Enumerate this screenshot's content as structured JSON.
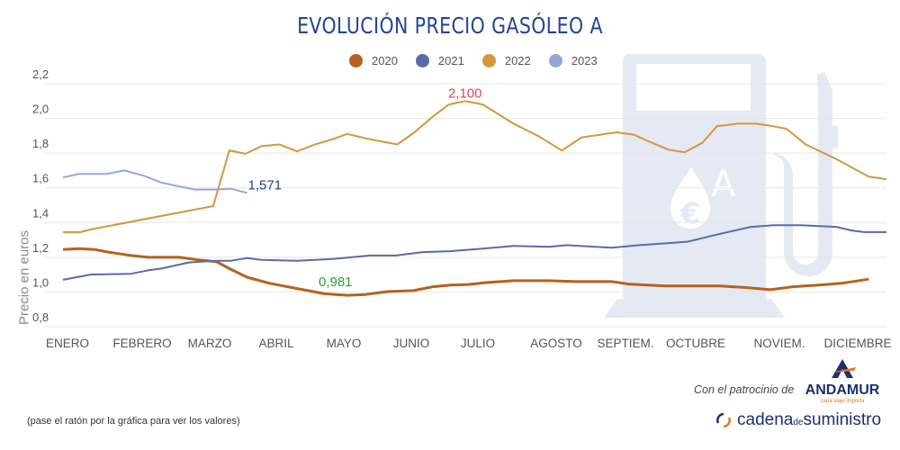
{
  "chart_data": {
    "type": "line",
    "title": "EVOLUCIÓN PRECIO GASÓLEO A",
    "ylabel": "Precio en euros",
    "xlabel": "",
    "x_unit": "week",
    "xlim": [
      1,
      52
    ],
    "ylim": [
      0.8,
      2.2
    ],
    "y_ticks": [
      "2,2",
      "2,0",
      "1,8",
      "1,6",
      "1,4",
      "1,2",
      "1,0",
      "0,8"
    ],
    "y_tick_values": [
      2.2,
      2.0,
      1.8,
      1.6,
      1.4,
      1.2,
      1.0,
      0.8
    ],
    "categories": [
      "ENERO",
      "FEBRERO",
      "MARZO",
      "ABRIL",
      "MAYO",
      "JUNIO",
      "JULIO",
      "AGOSTO",
      "SEPTIEM.",
      "OCTUBRE",
      "NOVIEM.",
      "DICIEMBRE"
    ],
    "grid": true,
    "legend": "top",
    "series": [
      {
        "name": "2020",
        "color": "#b5621e",
        "x": [
          1,
          2,
          2.95,
          3.8,
          5.2,
          6.3,
          8.2,
          9.4,
          10.5,
          11.3,
          12.4,
          13.8,
          15.5,
          17.2,
          18.6,
          19.7,
          21.1,
          22.7,
          23.9,
          25,
          26.1,
          27.2,
          28.9,
          31.1,
          32.8,
          35,
          36.1,
          38.3,
          41.7,
          43.4,
          44.8,
          46.2,
          47.8,
          49.2,
          50.9
        ],
        "y": [
          1.245,
          1.25,
          1.245,
          1.23,
          1.21,
          1.2,
          1.2,
          1.185,
          1.175,
          1.135,
          1.085,
          1.05,
          1.02,
          0.99,
          0.981,
          0.985,
          1.002,
          1.008,
          1.03,
          1.04,
          1.043,
          1.054,
          1.065,
          1.065,
          1.06,
          1.06,
          1.045,
          1.035,
          1.035,
          1.025,
          1.013,
          1.03,
          1.04,
          1.05,
          1.074
        ]
      },
      {
        "name": "2021",
        "color": "#5a6aa8",
        "x": [
          1,
          2.7,
          5.2,
          6.3,
          7.1,
          8.8,
          10.5,
          11.4,
          12.4,
          13.3,
          15.5,
          17.7,
          20,
          21.6,
          23.3,
          25,
          27,
          28.9,
          31.1,
          32.2,
          35,
          36.7,
          38.3,
          39.7,
          41.7,
          43.6,
          45,
          46.7,
          48.9,
          49.8,
          50.6,
          52
        ],
        "y": [
          1.07,
          1.1,
          1.105,
          1.125,
          1.135,
          1.17,
          1.18,
          1.18,
          1.195,
          1.185,
          1.18,
          1.19,
          1.21,
          1.21,
          1.23,
          1.235,
          1.25,
          1.265,
          1.26,
          1.27,
          1.255,
          1.27,
          1.28,
          1.29,
          1.335,
          1.375,
          1.385,
          1.385,
          1.375,
          1.355,
          1.345,
          1.345
        ]
      },
      {
        "name": "2022",
        "color": "#d4963f",
        "x": [
          1,
          2.1,
          2.7,
          10.3,
          11.3,
          12.3,
          13.3,
          14.4,
          15.5,
          16.6,
          17.7,
          18.6,
          20,
          21.7,
          22.7,
          23.9,
          24.9,
          25.9,
          27,
          28.9,
          30.5,
          31.9,
          33.1,
          35.3,
          36.4,
          37.2,
          38.5,
          39.5,
          40.6,
          41.5,
          42.8,
          43.9,
          45,
          45.8,
          47,
          48.9,
          50.9,
          52
        ],
        "y": [
          1.345,
          1.345,
          1.36,
          1.495,
          1.816,
          1.796,
          1.84,
          1.85,
          1.81,
          1.85,
          1.88,
          1.91,
          1.88,
          1.85,
          1.915,
          2.01,
          2.08,
          2.1,
          2.08,
          1.97,
          1.895,
          1.815,
          1.89,
          1.92,
          1.905,
          1.87,
          1.82,
          1.805,
          1.86,
          1.955,
          1.97,
          1.97,
          1.955,
          1.94,
          1.85,
          1.765,
          1.665,
          1.65
        ]
      },
      {
        "name": "2023",
        "color": "#97a6d2",
        "x": [
          1,
          2,
          3.7,
          4.8,
          6,
          7.1,
          8.1,
          9.2,
          10.5,
          11.4,
          12.4
        ],
        "y": [
          1.66,
          1.68,
          1.68,
          1.7,
          1.67,
          1.63,
          1.61,
          1.59,
          1.59,
          1.595,
          1.571
        ]
      }
    ],
    "annotations": [
      {
        "text": "2,100",
        "x": 25.9,
        "y": 2.1,
        "color": "#d04a57"
      },
      {
        "text": "0,981",
        "x": 18.6,
        "y": 0.981,
        "color": "#2e9e2e"
      },
      {
        "text": "1,571",
        "x": 12.4,
        "y": 1.571,
        "color": "#1f3f8f"
      }
    ]
  },
  "footer": {
    "note": "(pase el ratón por la gráfica para ver los valores)",
    "sponsor": "Con el patrocinio de",
    "andamur": "ANDAMUR",
    "andamur_tagline": "cada viaje importa",
    "cadena": "cadena",
    "cadena_de": "de",
    "cadena_suministro": "suministro"
  },
  "colors": {
    "title": "#23449a",
    "watermark": "#e4e9f3"
  }
}
